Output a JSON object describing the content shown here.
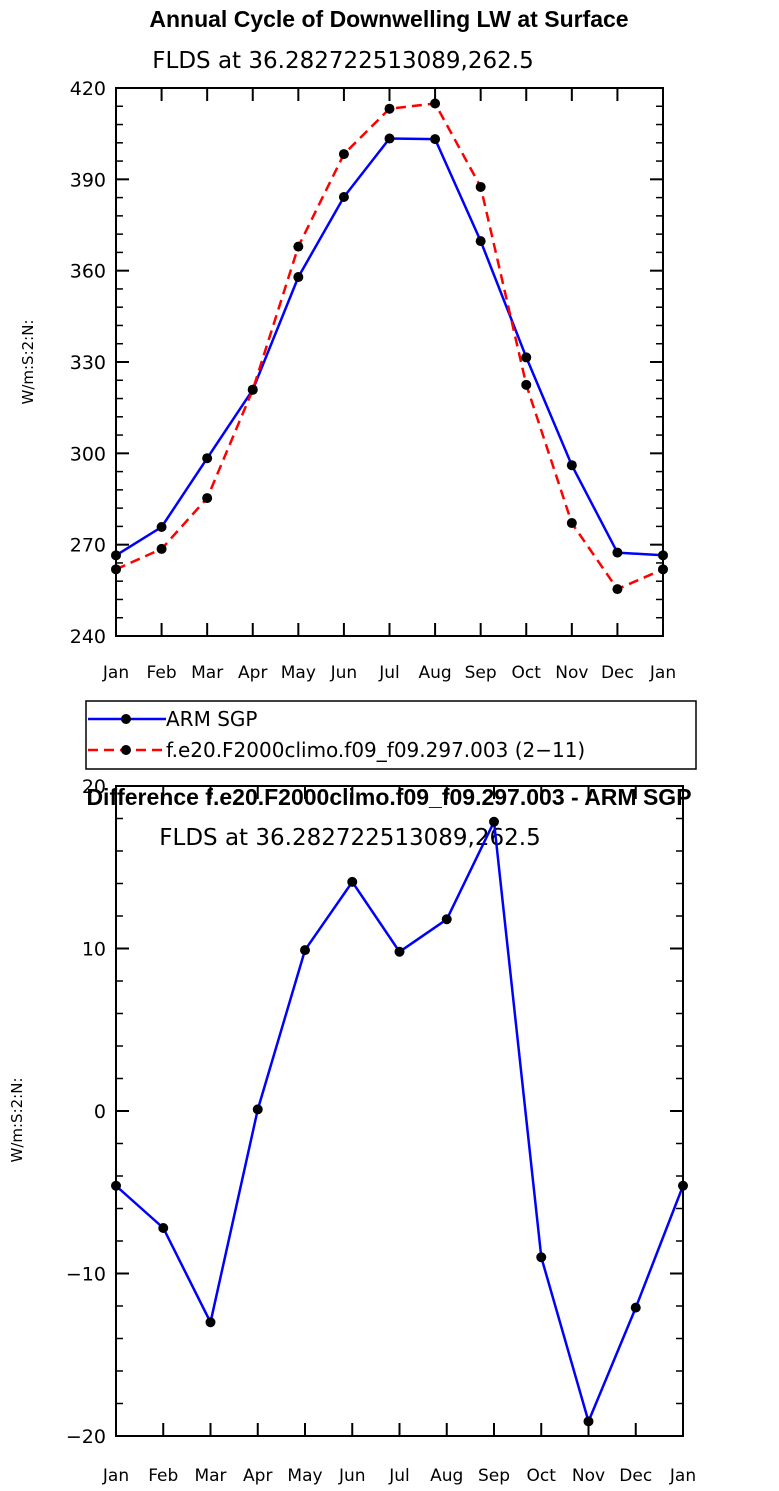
{
  "chart_data": [
    {
      "type": "line",
      "title": "Annual Cycle of Downwelling LW at Surface",
      "subtitle": "FLDS at 36.282722513089,262.5",
      "ylabel": "W/m:S:2:N:",
      "xlabel": "",
      "categories": [
        "Jan",
        "Feb",
        "Mar",
        "Apr",
        "May",
        "Jun",
        "Jul",
        "Aug",
        "Sep",
        "Oct",
        "Nov",
        "Dec",
        "Jan"
      ],
      "ylim": [
        240,
        420
      ],
      "yticks": [
        240,
        270,
        300,
        330,
        360,
        390,
        420
      ],
      "series": [
        {
          "name": "ARM SGP",
          "color": "#0000ff",
          "dash": "solid",
          "values": [
            266.5,
            275.8,
            298.4,
            320.9,
            357.9,
            384.2,
            403.4,
            403.2,
            369.7,
            331.5,
            296.1,
            267.4,
            266.5
          ]
        },
        {
          "name": "f.e20.F2000climo.f09_f09.297.003 (2−11)",
          "color": "#ff0000",
          "dash": "dashed",
          "values": [
            261.9,
            268.6,
            285.3,
            320.9,
            367.9,
            398.3,
            413.2,
            414.9,
            387.5,
            322.5,
            277.1,
            255.4,
            261.9
          ]
        }
      ],
      "legend": {
        "placement": "below"
      }
    },
    {
      "type": "line",
      "title": "Difference f.e20.F2000climo.f09_f09.297.003 - ARM SGP",
      "subtitle": "FLDS at 36.282722513089,262.5",
      "ylabel": "W/m:S:2:N:",
      "xlabel": "",
      "categories": [
        "Jan",
        "Feb",
        "Mar",
        "Apr",
        "May",
        "Jun",
        "Jul",
        "Aug",
        "Sep",
        "Oct",
        "Nov",
        "Dec",
        "Jan"
      ],
      "ylim": [
        -20,
        20
      ],
      "yticks": [
        -20,
        -10,
        0,
        10,
        20
      ],
      "ytick_labels": [
        "−20",
        "−10",
        "0",
        "10",
        "20"
      ],
      "series": [
        {
          "name": "Difference",
          "color": "#0000ff",
          "dash": "solid",
          "values": [
            -4.6,
            -7.2,
            -13.0,
            0.1,
            9.9,
            14.1,
            9.8,
            11.8,
            17.8,
            -9.0,
            -19.1,
            -12.1,
            -4.6
          ]
        }
      ]
    }
  ]
}
